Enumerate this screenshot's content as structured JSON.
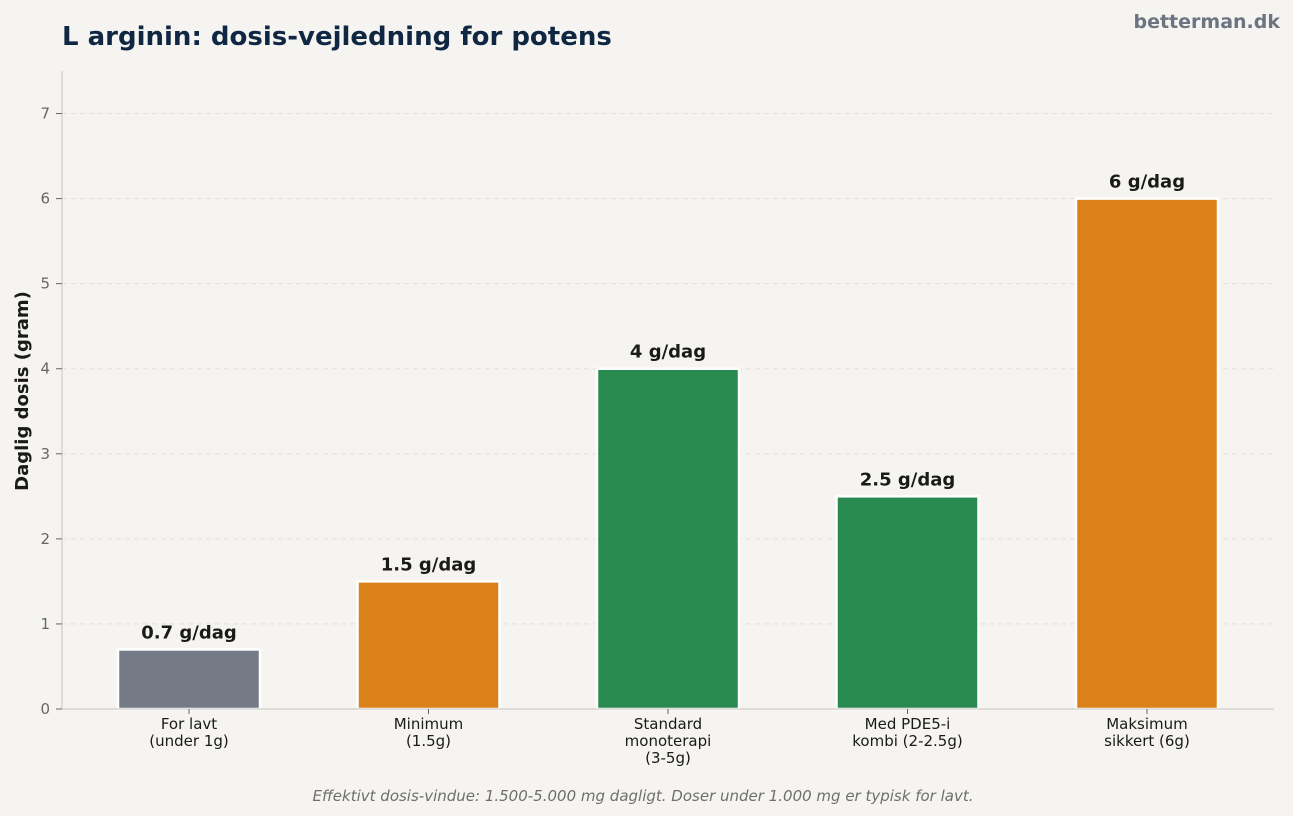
{
  "brand": "betterman.dk",
  "footnote": "Effektivt dosis-vindue: 1.500-5.000 mg dagligt. Doser under 1.000 mg er typisk for lavt.",
  "colors": {
    "background": "#f5f4f1",
    "title": "#0f2742",
    "brand": "#6b7480",
    "axis_text": "#666666",
    "label_text": "#1a1a1a",
    "footnote": "#6e6e6e",
    "grid": "#e2e0dc",
    "axis_line": "#cfcdc9"
  },
  "chart_data": {
    "type": "bar",
    "title": "L arginin: dosis-vejledning for potens",
    "xlabel": "",
    "ylabel": "Daglig dosis (gram)",
    "ylim": [
      0,
      7.5
    ],
    "yticks": [
      0,
      1,
      2,
      3,
      4,
      5,
      6,
      7
    ],
    "grid": true,
    "categories": [
      [
        "For lavt",
        "(under 1g)"
      ],
      [
        "Minimum",
        "(1.5g)"
      ],
      [
        "Standard",
        "monoterapi",
        "(3-5g)"
      ],
      [
        "Med PDE5-i",
        "kombi (2-2.5g)"
      ],
      [
        "Maksimum",
        "sikkert (6g)"
      ]
    ],
    "values": [
      0.7,
      1.5,
      4,
      2.5,
      6
    ],
    "data_labels": [
      "0.7 g/dag",
      "1.5 g/dag",
      "4 g/dag",
      "2.5 g/dag",
      "6 g/dag"
    ],
    "bar_colors": [
      "#747b86",
      "#db8119",
      "#288a4e",
      "#288a4e",
      "#db8119"
    ]
  }
}
